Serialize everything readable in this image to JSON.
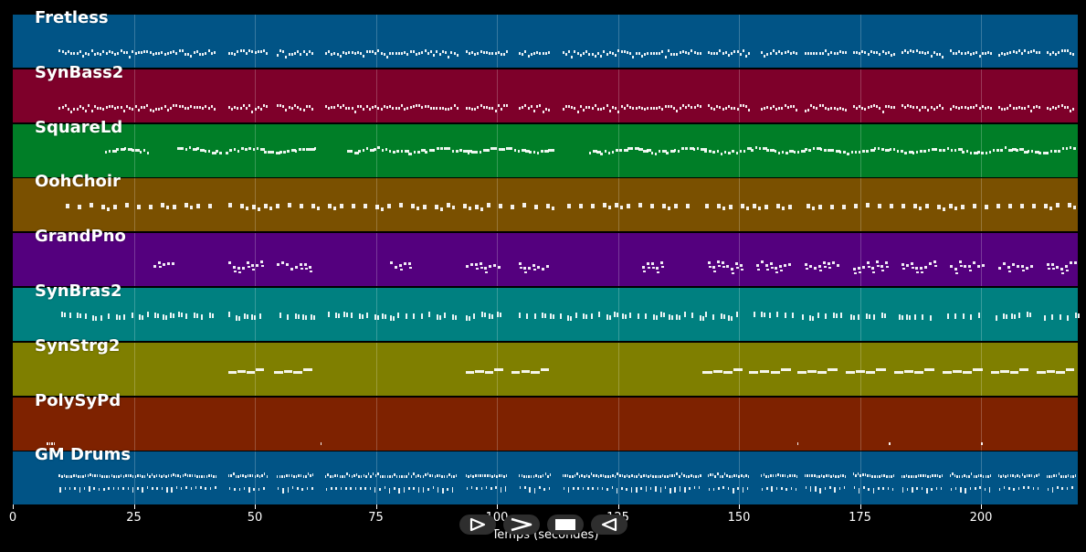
{
  "chart_data": {
    "type": "piano-roll",
    "xlabel": "Temps (secondes)",
    "xlim": [
      0,
      220
    ],
    "xticks": [
      0,
      25,
      50,
      75,
      100,
      125,
      150,
      175,
      200
    ],
    "grid": true,
    "tracks": [
      {
        "name": "Fretless",
        "color": "#015486",
        "pattern": "bass",
        "segments": [
          [
            9.5,
            42
          ],
          [
            44.5,
            52.5
          ],
          [
            54.5,
            62
          ],
          [
            64.5,
            92
          ],
          [
            93.5,
            102
          ],
          [
            104.5,
            111
          ],
          [
            113.5,
            142
          ],
          [
            143.5,
            152
          ],
          [
            154.5,
            162
          ],
          [
            163.5,
            172
          ],
          [
            173.5,
            182
          ],
          [
            183.5,
            192
          ],
          [
            193.5,
            202
          ],
          [
            203.5,
            212
          ],
          [
            213.5,
            219.5
          ]
        ]
      },
      {
        "name": "SynBass2",
        "color": "#7e002a",
        "pattern": "bass",
        "segments": [
          [
            9.5,
            42
          ],
          [
            44.5,
            52.5
          ],
          [
            54.5,
            62
          ],
          [
            64.5,
            92
          ],
          [
            93.5,
            102
          ],
          [
            104.5,
            111
          ],
          [
            113.5,
            142
          ],
          [
            143.5,
            152
          ],
          [
            154.5,
            162
          ],
          [
            163.5,
            172
          ],
          [
            173.5,
            182
          ],
          [
            183.5,
            192
          ],
          [
            193.5,
            202
          ],
          [
            203.5,
            212
          ],
          [
            213.5,
            219.5
          ]
        ]
      },
      {
        "name": "SquareLd",
        "color": "#007e27",
        "pattern": "lead",
        "segments": [
          [
            19,
            28
          ],
          [
            34,
            43
          ],
          [
            44,
            63
          ],
          [
            69,
            82
          ],
          [
            82,
            94
          ],
          [
            94,
            112
          ],
          [
            119,
            131
          ],
          [
            131,
            143
          ],
          [
            143,
            219.5
          ]
        ]
      },
      {
        "name": "OohChoir",
        "color": "#7a5000",
        "pattern": "chords",
        "segments": [
          [
            11,
            42
          ],
          [
            44.5,
            62
          ],
          [
            65,
            90
          ],
          [
            93,
            112
          ],
          [
            114.5,
            141
          ],
          [
            143,
            162
          ],
          [
            164,
            219.5
          ]
        ]
      },
      {
        "name": "GrandPno",
        "color": "#54007e",
        "pattern": "piano",
        "segments": [
          [
            29,
            33.5
          ],
          [
            44.5,
            52
          ],
          [
            54.5,
            62
          ],
          [
            78,
            82.5
          ],
          [
            93.5,
            101
          ],
          [
            104.5,
            111
          ],
          [
            130,
            134.5
          ],
          [
            143.5,
            151
          ],
          [
            153.5,
            160.5
          ],
          [
            163.5,
            171
          ],
          [
            173.5,
            181
          ],
          [
            183.5,
            191
          ],
          [
            193.5,
            201
          ],
          [
            203.5,
            211
          ],
          [
            213.5,
            219.5
          ]
        ]
      },
      {
        "name": "SynBras2",
        "color": "#008080",
        "pattern": "brass",
        "segments": [
          [
            10,
            41
          ],
          [
            44.5,
            51
          ],
          [
            55,
            63
          ],
          [
            65,
            91
          ],
          [
            93.5,
            101
          ],
          [
            104.5,
            111
          ],
          [
            113,
            142
          ],
          [
            143,
            151
          ],
          [
            153,
            162
          ],
          [
            163,
            172
          ],
          [
            173,
            181
          ],
          [
            183,
            191
          ],
          [
            193,
            201
          ],
          [
            203,
            211
          ],
          [
            213,
            219.5
          ]
        ]
      },
      {
        "name": "SynStrg2",
        "color": "#7f7f00",
        "pattern": "strings",
        "segments": [
          [
            44.5,
            52
          ],
          [
            54,
            62
          ],
          [
            93.5,
            101.5
          ],
          [
            103,
            111
          ],
          [
            142.5,
            151
          ],
          [
            152,
            161
          ],
          [
            162,
            170.5
          ],
          [
            172,
            180.5
          ],
          [
            182,
            190.5
          ],
          [
            192,
            200.5
          ],
          [
            202,
            210
          ],
          [
            211.5,
            219.5
          ]
        ]
      },
      {
        "name": "PolySyPd",
        "color": "#7e2200",
        "pattern": "pad",
        "segments": [
          [
            7,
            8.8
          ],
          [
            63.5,
            63.9
          ],
          [
            162,
            162.4
          ],
          [
            181,
            181.4
          ],
          [
            200,
            200.4
          ]
        ]
      },
      {
        "name": "GM Drums",
        "color": "#015486",
        "pattern": "drums",
        "segments": [
          [
            9.5,
            42
          ],
          [
            44.5,
            52.5
          ],
          [
            54.5,
            62
          ],
          [
            64.5,
            91.5
          ],
          [
            93.5,
            102
          ],
          [
            104.5,
            111
          ],
          [
            113.5,
            142
          ],
          [
            143.5,
            152
          ],
          [
            154.5,
            162
          ],
          [
            163.5,
            172
          ],
          [
            173.5,
            182
          ],
          [
            183.5,
            192
          ],
          [
            193.5,
            202
          ],
          [
            203.5,
            212
          ],
          [
            213.5,
            219.5
          ]
        ]
      }
    ]
  },
  "transport": {
    "buttons": [
      {
        "name": "play-button",
        "icon": "play-icon"
      },
      {
        "name": "fast-forward-button",
        "icon": "fast-forward-icon"
      },
      {
        "name": "stop-button",
        "icon": "stop-icon"
      },
      {
        "name": "rewind-button",
        "icon": "rewind-icon"
      }
    ]
  }
}
